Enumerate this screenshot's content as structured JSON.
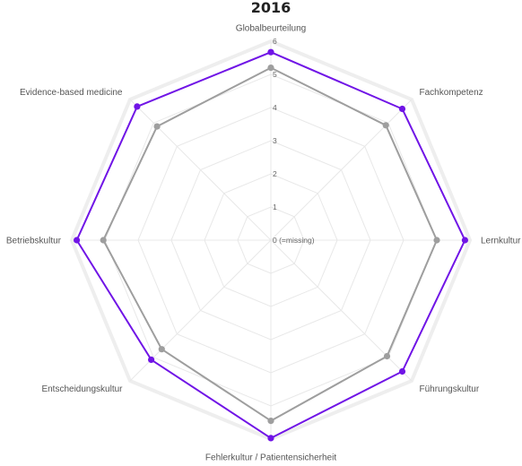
{
  "chart_data": {
    "type": "radar",
    "title": "2016",
    "axes": [
      "Globalbeurteilung",
      "Fachkompetenz",
      "Lernkultur",
      "Führungskultur",
      "Fehlerkultur / Patientensicherheit",
      "Entscheidungskultur",
      "Betriebskultur",
      "Evidence-based medicine"
    ],
    "ticks": [
      {
        "value": 0,
        "label": "0 (=missing)"
      },
      {
        "value": 1,
        "label": "1"
      },
      {
        "value": 2,
        "label": "2"
      },
      {
        "value": 3,
        "label": "3"
      },
      {
        "value": 4,
        "label": "4"
      },
      {
        "value": 5,
        "label": "5"
      },
      {
        "value": 6,
        "label": "6"
      }
    ],
    "rlim": [
      0,
      6
    ],
    "grid": true,
    "legend": "none",
    "series": [
      {
        "color": "#7014e6",
        "values": [
          5.67,
          5.6,
          5.85,
          5.6,
          5.97,
          5.1,
          5.85,
          5.7
        ]
      },
      {
        "color": "#9e9e9e",
        "values": [
          5.2,
          4.9,
          5.0,
          4.95,
          5.45,
          4.65,
          5.05,
          4.85
        ]
      }
    ]
  }
}
